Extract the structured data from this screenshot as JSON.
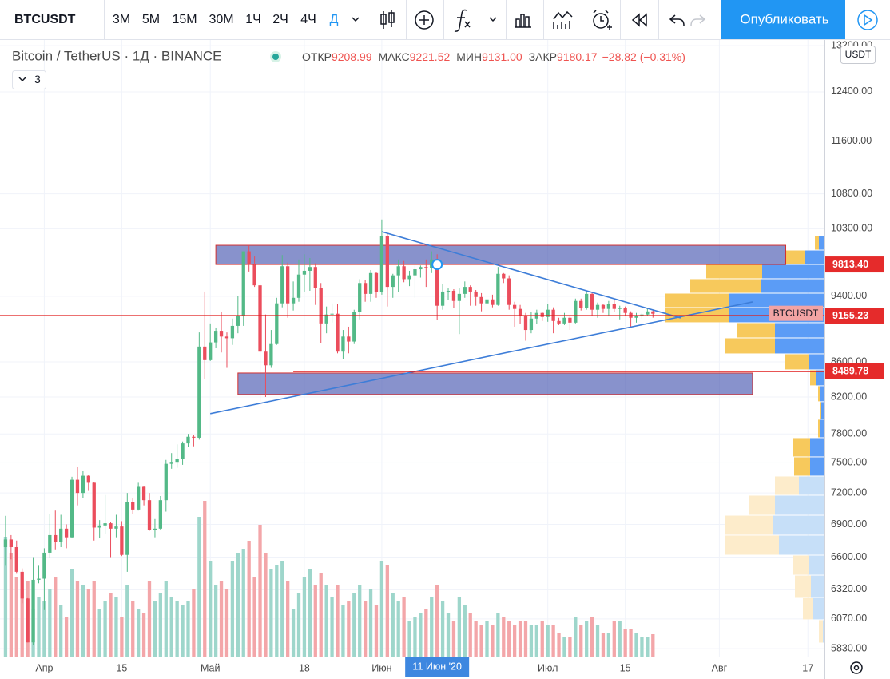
{
  "toolbar": {
    "symbol": "BTCUSDT",
    "intervals": [
      "3М",
      "5М",
      "15М",
      "30М",
      "1Ч",
      "2Ч",
      "4Ч",
      "Д"
    ],
    "active_interval": "Д",
    "publish": "Опубликовать"
  },
  "chart_data": {
    "type": "candlestick",
    "title": "Bitcoin / TetherUS · 1Д · BINANCE",
    "legend": [
      {
        "label": "ОТКР",
        "value": "9208.99"
      },
      {
        "label": "МАКС",
        "value": "9221.52"
      },
      {
        "label": "МИН",
        "value": "9131.00"
      },
      {
        "label": "ЗАКР",
        "value": "9180.17"
      }
    ],
    "change": "−28.82 (−0.31%)",
    "indicators": "3",
    "currency": "USDT",
    "log_scale": true,
    "grid": true,
    "up_color": "#53b987",
    "down_color": "#eb4d5c",
    "volume_up_color": "#9ed6cb",
    "volume_down_color": "#f3a6a9",
    "xlim": [
      "2020-03-24",
      "2020-08-20"
    ],
    "ylim": [
      5768,
      13303
    ],
    "yticks": [
      {
        "value": 5830,
        "label": "5830.00"
      },
      {
        "value": 6070,
        "label": "6070.00"
      },
      {
        "value": 6320,
        "label": "6320.00"
      },
      {
        "value": 6600,
        "label": "6600.00"
      },
      {
        "value": 6900,
        "label": "6900.00"
      },
      {
        "value": 7200,
        "label": "7200.00"
      },
      {
        "value": 7500,
        "label": "7500.00"
      },
      {
        "value": 7800,
        "label": "7800.00"
      },
      {
        "value": 8200,
        "label": "8200.00"
      },
      {
        "value": 8600,
        "label": "8600.00"
      },
      {
        "value": 9400,
        "label": "9400.00"
      },
      {
        "value": 10300,
        "label": "10300.00"
      },
      {
        "value": 10800,
        "label": "10800.00"
      },
      {
        "value": 11600,
        "label": "11600.00"
      },
      {
        "value": 12400,
        "label": "12400.00"
      },
      {
        "value": 13200,
        "label": "13200.00"
      }
    ],
    "xticks": [
      {
        "value": "2020-04-01",
        "label": "Апр"
      },
      {
        "value": "2020-04-15",
        "label": "15"
      },
      {
        "value": "2020-05-01",
        "label": "Май"
      },
      {
        "value": "2020-05-18",
        "label": "18"
      },
      {
        "value": "2020-06-01",
        "label": "Июн"
      },
      {
        "value": "2020-07-01",
        "label": "Июл"
      },
      {
        "value": "2020-07-15",
        "label": "15"
      },
      {
        "value": "2020-08-01",
        "label": "Авг"
      },
      {
        "value": "2020-08-17",
        "label": "17"
      }
    ],
    "crosshair": {
      "x": "2020-06-11",
      "y": 9813.4,
      "label": "11 Июн '20"
    },
    "x": [
      "2020-03-25",
      "2020-03-26",
      "2020-03-27",
      "2020-03-28",
      "2020-03-29",
      "2020-03-30",
      "2020-03-31",
      "2020-04-01",
      "2020-04-02",
      "2020-04-03",
      "2020-04-04",
      "2020-04-05",
      "2020-04-06",
      "2020-04-07",
      "2020-04-08",
      "2020-04-09",
      "2020-04-10",
      "2020-04-11",
      "2020-04-12",
      "2020-04-13",
      "2020-04-14",
      "2020-04-15",
      "2020-04-16",
      "2020-04-17",
      "2020-04-18",
      "2020-04-19",
      "2020-04-20",
      "2020-04-21",
      "2020-04-22",
      "2020-04-23",
      "2020-04-24",
      "2020-04-25",
      "2020-04-26",
      "2020-04-27",
      "2020-04-28",
      "2020-04-29",
      "2020-04-30",
      "2020-05-01",
      "2020-05-02",
      "2020-05-03",
      "2020-05-04",
      "2020-05-05",
      "2020-05-06",
      "2020-05-07",
      "2020-05-08",
      "2020-05-09",
      "2020-05-10",
      "2020-05-11",
      "2020-05-12",
      "2020-05-13",
      "2020-05-14",
      "2020-05-15",
      "2020-05-16",
      "2020-05-17",
      "2020-05-18",
      "2020-05-19",
      "2020-05-20",
      "2020-05-21",
      "2020-05-22",
      "2020-05-23",
      "2020-05-24",
      "2020-05-25",
      "2020-05-26",
      "2020-05-27",
      "2020-05-28",
      "2020-05-29",
      "2020-05-30",
      "2020-05-31",
      "2020-06-01",
      "2020-06-02",
      "2020-06-03",
      "2020-06-04",
      "2020-06-05",
      "2020-06-06",
      "2020-06-07",
      "2020-06-08",
      "2020-06-09",
      "2020-06-10",
      "2020-06-11",
      "2020-06-12",
      "2020-06-13",
      "2020-06-14",
      "2020-06-15",
      "2020-06-16",
      "2020-06-17",
      "2020-06-18",
      "2020-06-19",
      "2020-06-20",
      "2020-06-21",
      "2020-06-22",
      "2020-06-23",
      "2020-06-24",
      "2020-06-25",
      "2020-06-26",
      "2020-06-27",
      "2020-06-28",
      "2020-06-29",
      "2020-06-30",
      "2020-07-01",
      "2020-07-02",
      "2020-07-03",
      "2020-07-04",
      "2020-07-05",
      "2020-07-06",
      "2020-07-07",
      "2020-07-08",
      "2020-07-09",
      "2020-07-10",
      "2020-07-11",
      "2020-07-12",
      "2020-07-13",
      "2020-07-14",
      "2020-07-15",
      "2020-07-16",
      "2020-07-17",
      "2020-07-18",
      "2020-07-19",
      "2020-07-20"
    ],
    "ohlc": [
      [
        6690,
        6980,
        6530,
        6760
      ],
      [
        6760,
        6800,
        6580,
        6690
      ],
      [
        6690,
        6750,
        6460,
        6470
      ],
      [
        6470,
        6500,
        6200,
        6240
      ],
      [
        6240,
        6250,
        5880,
        5880
      ],
      [
        5880,
        6600,
        5860,
        6400
      ],
      [
        6400,
        6530,
        6370,
        6410
      ],
      [
        6410,
        6680,
        6150,
        6640
      ],
      [
        6640,
        7000,
        6590,
        6800
      ],
      [
        6800,
        7030,
        6670,
        6740
      ],
      [
        6740,
        6990,
        6690,
        6860
      ],
      [
        6860,
        6900,
        6680,
        6780
      ],
      [
        6780,
        7360,
        6770,
        7330
      ],
      [
        7330,
        7460,
        7080,
        7200
      ],
      [
        7200,
        7420,
        7150,
        7370
      ],
      [
        7370,
        7380,
        7220,
        7300
      ],
      [
        7300,
        7310,
        6750,
        6870
      ],
      [
        6870,
        6940,
        6770,
        6890
      ],
      [
        6890,
        7180,
        6810,
        6910
      ],
      [
        6910,
        6920,
        6600,
        6860
      ],
      [
        6860,
        6990,
        6780,
        6880
      ],
      [
        6880,
        6930,
        6610,
        6620
      ],
      [
        6620,
        7200,
        6470,
        7110
      ],
      [
        7110,
        7150,
        7000,
        7040
      ],
      [
        7040,
        7300,
        7030,
        7260
      ],
      [
        7260,
        7270,
        7080,
        7130
      ],
      [
        7130,
        7200,
        6840,
        6850
      ],
      [
        6850,
        6950,
        6780,
        6860
      ],
      [
        6860,
        7170,
        6850,
        7130
      ],
      [
        7130,
        7530,
        7020,
        7490
      ],
      [
        7490,
        7600,
        7440,
        7510
      ],
      [
        7510,
        7690,
        7450,
        7540
      ],
      [
        7540,
        7720,
        7480,
        7700
      ],
      [
        7700,
        7800,
        7660,
        7770
      ],
      [
        7770,
        7790,
        7670,
        7760
      ],
      [
        7760,
        8950,
        7740,
        8780
      ],
      [
        8780,
        9460,
        8400,
        8620
      ],
      [
        8620,
        9060,
        8610,
        8830
      ],
      [
        8830,
        9010,
        8760,
        8970
      ],
      [
        8970,
        9200,
        8710,
        8900
      ],
      [
        8900,
        8950,
        8530,
        8880
      ],
      [
        8880,
        9120,
        8800,
        9030
      ],
      [
        9030,
        9400,
        8940,
        9150
      ],
      [
        9150,
        9990,
        9030,
        9990
      ],
      [
        9990,
        10070,
        9720,
        9810
      ],
      [
        9810,
        9920,
        9520,
        9540
      ],
      [
        9540,
        9570,
        8110,
        8720
      ],
      [
        8720,
        9170,
        8200,
        8560
      ],
      [
        8560,
        8980,
        8530,
        8810
      ],
      [
        8810,
        9380,
        8800,
        9310
      ],
      [
        9310,
        9940,
        9260,
        9790
      ],
      [
        9790,
        9840,
        9130,
        9310
      ],
      [
        9310,
        9590,
        9220,
        9380
      ],
      [
        9380,
        9880,
        9330,
        9680
      ],
      [
        9680,
        9950,
        9460,
        9730
      ],
      [
        9730,
        9900,
        9470,
        9780
      ],
      [
        9780,
        9830,
        9290,
        9510
      ],
      [
        9510,
        9570,
        8820,
        9060
      ],
      [
        9060,
        9270,
        8940,
        9170
      ],
      [
        9170,
        9310,
        9070,
        9180
      ],
      [
        9180,
        9300,
        8700,
        8720
      ],
      [
        8720,
        8980,
        8630,
        8900
      ],
      [
        8900,
        9020,
        8700,
        8840
      ],
      [
        8840,
        9230,
        8810,
        9200
      ],
      [
        9200,
        9620,
        9110,
        9570
      ],
      [
        9570,
        9610,
        9330,
        9430
      ],
      [
        9430,
        9740,
        9330,
        9700
      ],
      [
        9700,
        9710,
        9380,
        9450
      ],
      [
        9450,
        10430,
        9420,
        10200
      ],
      [
        10200,
        10230,
        9270,
        9520
      ],
      [
        9520,
        9690,
        9380,
        9670
      ],
      [
        9670,
        9880,
        9450,
        9790
      ],
      [
        9790,
        9860,
        9580,
        9620
      ],
      [
        9620,
        9730,
        9530,
        9670
      ],
      [
        9670,
        9800,
        9380,
        9750
      ],
      [
        9750,
        9800,
        9640,
        9780
      ],
      [
        9780,
        9880,
        9520,
        9770
      ],
      [
        9770,
        9990,
        9700,
        9880
      ],
      [
        9880,
        9950,
        9100,
        9280
      ],
      [
        9280,
        9560,
        9230,
        9460
      ],
      [
        9460,
        9500,
        9350,
        9470
      ],
      [
        9470,
        9490,
        9250,
        9340
      ],
      [
        9340,
        9500,
        8930,
        9430
      ],
      [
        9430,
        9590,
        9380,
        9520
      ],
      [
        9520,
        9540,
        9280,
        9460
      ],
      [
        9460,
        9480,
        9280,
        9390
      ],
      [
        9390,
        9440,
        9210,
        9310
      ],
      [
        9310,
        9400,
        9200,
        9360
      ],
      [
        9360,
        9420,
        9260,
        9290
      ],
      [
        9290,
        9780,
        9280,
        9690
      ],
      [
        9690,
        9700,
        9570,
        9630
      ],
      [
        9630,
        9670,
        9230,
        9290
      ],
      [
        9290,
        9330,
        9020,
        9240
      ],
      [
        9240,
        9290,
        9050,
        9160
      ],
      [
        9160,
        9190,
        8850,
        8980
      ],
      [
        8980,
        9200,
        8940,
        9120
      ],
      [
        9120,
        9230,
        9050,
        9190
      ],
      [
        9190,
        9200,
        9090,
        9140
      ],
      [
        9140,
        9300,
        9080,
        9230
      ],
      [
        9230,
        9260,
        8940,
        9090
      ],
      [
        9090,
        9130,
        9040,
        9060
      ],
      [
        9060,
        9190,
        9040,
        9130
      ],
      [
        9130,
        9150,
        8980,
        9070
      ],
      [
        9070,
        9370,
        9060,
        9340
      ],
      [
        9340,
        9370,
        9220,
        9250
      ],
      [
        9250,
        9470,
        9230,
        9430
      ],
      [
        9430,
        9450,
        9160,
        9230
      ],
      [
        9230,
        9320,
        9130,
        9290
      ],
      [
        9290,
        9300,
        9190,
        9240
      ],
      [
        9240,
        9340,
        9150,
        9300
      ],
      [
        9300,
        9350,
        9200,
        9240
      ],
      [
        9240,
        9280,
        9110,
        9250
      ],
      [
        9250,
        9270,
        9160,
        9190
      ],
      [
        9190,
        9210,
        9000,
        9130
      ],
      [
        9130,
        9190,
        9070,
        9150
      ],
      [
        9150,
        9190,
        9120,
        9170
      ],
      [
        9170,
        9250,
        9150,
        9208.99
      ],
      [
        9208.99,
        9221.52,
        9131,
        9180.17
      ]
    ],
    "volume": [
      150000,
      130000,
      100000,
      85000,
      95000,
      60000,
      75000,
      70000,
      85000,
      100000,
      65000,
      50000,
      110000,
      95000,
      90000,
      85000,
      95000,
      60000,
      70000,
      80000,
      75000,
      50000,
      90000,
      70000,
      60000,
      55000,
      95000,
      70000,
      80000,
      95000,
      75000,
      70000,
      65000,
      70000,
      85000,
      175000,
      195000,
      120000,
      90000,
      95000,
      85000,
      120000,
      130000,
      135000,
      145000,
      100000,
      165000,
      130000,
      110000,
      115000,
      120000,
      95000,
      60000,
      80000,
      100000,
      110000,
      90000,
      105000,
      90000,
      75000,
      90000,
      65000,
      70000,
      80000,
      90000,
      70000,
      85000,
      65000,
      120000,
      115000,
      80000,
      70000,
      75000,
      45000,
      50000,
      55000,
      60000,
      75000,
      90000,
      70000,
      55000,
      45000,
      75000,
      65000,
      55000,
      45000,
      40000,
      45000,
      40000,
      55000,
      50000,
      45000,
      40000,
      45000,
      45000,
      40000,
      40000,
      45000,
      40000,
      40000,
      30000,
      25000,
      25000,
      50000,
      40000,
      45000,
      50000,
      40000,
      30000,
      30000,
      45000,
      45000,
      35000,
      35000,
      30000,
      25000,
      25000,
      28000
    ],
    "volume_profile": {
      "bins": [
        5875,
        6063,
        6249,
        6441,
        6618,
        6800,
        6986,
        7178,
        7367,
        7561,
        7760,
        7956,
        8148,
        8326,
        8508,
        8694,
        8884,
        9069,
        9257,
        9439,
        9625,
        9814,
        10007,
        10204
      ],
      "up": [
        2000,
        14000,
        17000,
        20000,
        57000,
        64000,
        62000,
        32000,
        18000,
        18000,
        6000,
        4000,
        5000,
        10000,
        20000,
        62000,
        62000,
        120000,
        120000,
        80000,
        78000,
        24000,
        7000
      ],
      "down": [
        5000,
        13000,
        20000,
        20000,
        67000,
        60000,
        32000,
        30000,
        20000,
        22000,
        2000,
        2000,
        3000,
        8000,
        30000,
        62000,
        48000,
        80000,
        80000,
        88000,
        70000,
        25000,
        5000
      ],
      "value_area": [
        7367,
        10204
      ],
      "up_color": "#5b9cf6",
      "down_color": "#f7c95c",
      "up_color_outside": "#c6dff8",
      "down_color_outside": "#fdeccb"
    },
    "rectangles": [
      {
        "x": [
          "2020-05-02",
          "2020-08-13"
        ],
        "y": [
          9813.4,
          10072
        ]
      },
      {
        "x": [
          "2020-05-06",
          "2020-08-07"
        ],
        "y": [
          8228,
          8471
        ]
      }
    ],
    "trendlines": [
      {
        "x": [
          "2020-06-01",
          "2020-07-25"
        ],
        "y": [
          10259,
          9128
        ]
      },
      {
        "x": [
          "2020-05-01",
          "2020-08-07"
        ],
        "y": [
          8017,
          9328
        ]
      }
    ],
    "price_labels": [
      {
        "value": 9813.4,
        "label": "9813.40"
      },
      {
        "value": 9155.23,
        "label": "9155.23",
        "line_from": "2020-03-24"
      },
      {
        "value": 8489.78,
        "label": "8489.78",
        "line_from": "2020-05-16"
      }
    ],
    "symbol_label": {
      "value": 9180.17,
      "label": "BTCUSDT"
    }
  }
}
